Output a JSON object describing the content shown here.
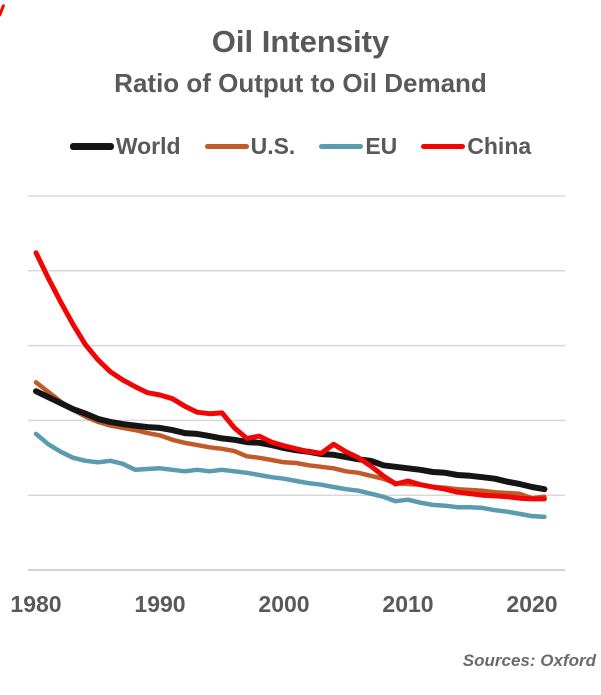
{
  "page": {
    "background": "#ffffff",
    "text_color": "#595959"
  },
  "header": {
    "title": "Oil Intensity",
    "subtitle": "Ratio of Output to Oil Demand"
  },
  "legend": {
    "items": [
      {
        "label": "World",
        "color": "#151515",
        "thick": true
      },
      {
        "label": "U.S.",
        "color": "#C05A28",
        "thick": false
      },
      {
        "label": "EU",
        "color": "#5B9BB0",
        "thick": false
      },
      {
        "label": "China",
        "color": "#F20505",
        "thick": false
      }
    ]
  },
  "footer": {
    "source_note": "Sources: Oxford"
  },
  "decor": {
    "stray_mark_color": "#F20505"
  },
  "chart_data": {
    "type": "line",
    "title": "Oil Intensity",
    "subtitle": "Ratio of Output to Oil Demand",
    "grid": "horizontal-only",
    "gridline_color": "#D8D8D8",
    "axis_line_color": "#C4C4C4",
    "legend_position": "top",
    "y_axis_note": "no numeric y-axis labels shown; values estimated in gridline units (0 = bottom gridline, 5 = top gridline)",
    "ylim": [
      0,
      5
    ],
    "x_tick_labels": [
      "1980",
      "1990",
      "2000",
      "2010",
      "2020"
    ],
    "x": [
      1980,
      1981,
      1982,
      1983,
      1984,
      1985,
      1986,
      1987,
      1988,
      1989,
      1990,
      1991,
      1992,
      1993,
      1994,
      1995,
      1996,
      1997,
      1998,
      1999,
      2000,
      2001,
      2002,
      2003,
      2004,
      2005,
      2006,
      2007,
      2008,
      2009,
      2010,
      2011,
      2012,
      2013,
      2014,
      2015,
      2016,
      2017,
      2018,
      2019,
      2020,
      2021
    ],
    "series": [
      {
        "name": "World",
        "color": "#151515",
        "width": 6,
        "z": 2,
        "values": [
          2.39,
          2.31,
          2.23,
          2.15,
          2.09,
          2.02,
          1.98,
          1.95,
          1.93,
          1.91,
          1.9,
          1.87,
          1.83,
          1.82,
          1.79,
          1.76,
          1.74,
          1.71,
          1.7,
          1.67,
          1.63,
          1.6,
          1.58,
          1.55,
          1.54,
          1.51,
          1.48,
          1.46,
          1.4,
          1.38,
          1.36,
          1.34,
          1.31,
          1.3,
          1.27,
          1.26,
          1.24,
          1.22,
          1.18,
          1.15,
          1.11,
          1.08
        ]
      },
      {
        "name": "U.S.",
        "color": "#C05A28",
        "width": 4.5,
        "z": 1,
        "values": [
          2.51,
          2.38,
          2.25,
          2.14,
          2.05,
          1.98,
          1.93,
          1.9,
          1.87,
          1.83,
          1.8,
          1.74,
          1.7,
          1.67,
          1.64,
          1.62,
          1.59,
          1.52,
          1.5,
          1.47,
          1.44,
          1.43,
          1.4,
          1.38,
          1.36,
          1.32,
          1.3,
          1.26,
          1.22,
          1.16,
          1.15,
          1.14,
          1.11,
          1.1,
          1.08,
          1.07,
          1.06,
          1.04,
          1.03,
          1.02,
          0.96,
          0.98
        ]
      },
      {
        "name": "EU",
        "color": "#5B9BB0",
        "width": 4.5,
        "z": 3,
        "values": [
          1.82,
          1.68,
          1.58,
          1.5,
          1.46,
          1.44,
          1.46,
          1.42,
          1.34,
          1.35,
          1.36,
          1.34,
          1.32,
          1.34,
          1.32,
          1.34,
          1.32,
          1.3,
          1.27,
          1.24,
          1.22,
          1.19,
          1.16,
          1.14,
          1.11,
          1.08,
          1.06,
          1.02,
          0.98,
          0.92,
          0.94,
          0.9,
          0.87,
          0.86,
          0.84,
          0.84,
          0.83,
          0.8,
          0.78,
          0.75,
          0.72,
          0.71
        ]
      },
      {
        "name": "China",
        "color": "#F20505",
        "width": 5,
        "z": 4,
        "values": [
          4.24,
          3.9,
          3.58,
          3.28,
          3.01,
          2.81,
          2.65,
          2.54,
          2.45,
          2.37,
          2.34,
          2.29,
          2.19,
          2.11,
          2.09,
          2.1,
          1.9,
          1.76,
          1.79,
          1.71,
          1.66,
          1.62,
          1.58,
          1.56,
          1.68,
          1.58,
          1.5,
          1.39,
          1.26,
          1.15,
          1.19,
          1.14,
          1.11,
          1.08,
          1.04,
          1.02,
          1.0,
          0.99,
          0.98,
          0.96,
          0.95,
          0.95
        ]
      }
    ]
  }
}
